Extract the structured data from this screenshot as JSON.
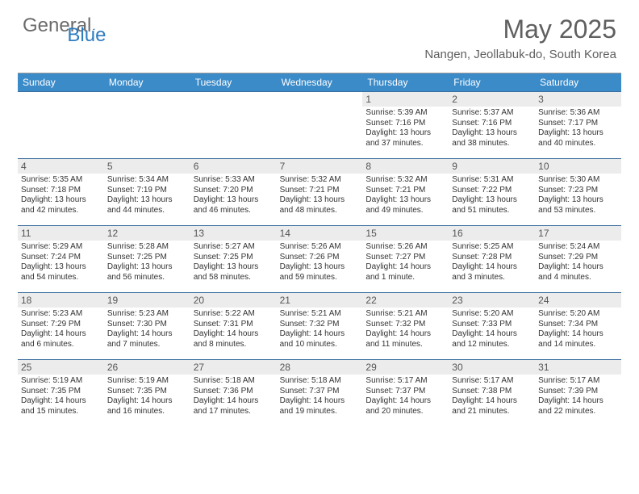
{
  "brand": {
    "part1": "General",
    "part2": "Blue"
  },
  "title": "May 2025",
  "location": "Nangen, Jeollabuk-do, South Korea",
  "colors": {
    "header_bar": "#3b8bc9",
    "week_divider": "#3b6fa0",
    "daynum_bg": "#ececec",
    "logo_gray": "#6b6b6b",
    "logo_blue": "#2e7cc0",
    "title_gray": "#5f5f5f"
  },
  "dow": [
    "Sunday",
    "Monday",
    "Tuesday",
    "Wednesday",
    "Thursday",
    "Friday",
    "Saturday"
  ],
  "weeks": [
    [
      {
        "empty": true
      },
      {
        "empty": true
      },
      {
        "empty": true
      },
      {
        "empty": true
      },
      {
        "n": "1",
        "sr": "Sunrise: 5:39 AM",
        "ss": "Sunset: 7:16 PM",
        "d1": "Daylight: 13 hours",
        "d2": "and 37 minutes."
      },
      {
        "n": "2",
        "sr": "Sunrise: 5:37 AM",
        "ss": "Sunset: 7:16 PM",
        "d1": "Daylight: 13 hours",
        "d2": "and 38 minutes."
      },
      {
        "n": "3",
        "sr": "Sunrise: 5:36 AM",
        "ss": "Sunset: 7:17 PM",
        "d1": "Daylight: 13 hours",
        "d2": "and 40 minutes."
      }
    ],
    [
      {
        "n": "4",
        "sr": "Sunrise: 5:35 AM",
        "ss": "Sunset: 7:18 PM",
        "d1": "Daylight: 13 hours",
        "d2": "and 42 minutes."
      },
      {
        "n": "5",
        "sr": "Sunrise: 5:34 AM",
        "ss": "Sunset: 7:19 PM",
        "d1": "Daylight: 13 hours",
        "d2": "and 44 minutes."
      },
      {
        "n": "6",
        "sr": "Sunrise: 5:33 AM",
        "ss": "Sunset: 7:20 PM",
        "d1": "Daylight: 13 hours",
        "d2": "and 46 minutes."
      },
      {
        "n": "7",
        "sr": "Sunrise: 5:32 AM",
        "ss": "Sunset: 7:21 PM",
        "d1": "Daylight: 13 hours",
        "d2": "and 48 minutes."
      },
      {
        "n": "8",
        "sr": "Sunrise: 5:32 AM",
        "ss": "Sunset: 7:21 PM",
        "d1": "Daylight: 13 hours",
        "d2": "and 49 minutes."
      },
      {
        "n": "9",
        "sr": "Sunrise: 5:31 AM",
        "ss": "Sunset: 7:22 PM",
        "d1": "Daylight: 13 hours",
        "d2": "and 51 minutes."
      },
      {
        "n": "10",
        "sr": "Sunrise: 5:30 AM",
        "ss": "Sunset: 7:23 PM",
        "d1": "Daylight: 13 hours",
        "d2": "and 53 minutes."
      }
    ],
    [
      {
        "n": "11",
        "sr": "Sunrise: 5:29 AM",
        "ss": "Sunset: 7:24 PM",
        "d1": "Daylight: 13 hours",
        "d2": "and 54 minutes."
      },
      {
        "n": "12",
        "sr": "Sunrise: 5:28 AM",
        "ss": "Sunset: 7:25 PM",
        "d1": "Daylight: 13 hours",
        "d2": "and 56 minutes."
      },
      {
        "n": "13",
        "sr": "Sunrise: 5:27 AM",
        "ss": "Sunset: 7:25 PM",
        "d1": "Daylight: 13 hours",
        "d2": "and 58 minutes."
      },
      {
        "n": "14",
        "sr": "Sunrise: 5:26 AM",
        "ss": "Sunset: 7:26 PM",
        "d1": "Daylight: 13 hours",
        "d2": "and 59 minutes."
      },
      {
        "n": "15",
        "sr": "Sunrise: 5:26 AM",
        "ss": "Sunset: 7:27 PM",
        "d1": "Daylight: 14 hours",
        "d2": "and 1 minute."
      },
      {
        "n": "16",
        "sr": "Sunrise: 5:25 AM",
        "ss": "Sunset: 7:28 PM",
        "d1": "Daylight: 14 hours",
        "d2": "and 3 minutes."
      },
      {
        "n": "17",
        "sr": "Sunrise: 5:24 AM",
        "ss": "Sunset: 7:29 PM",
        "d1": "Daylight: 14 hours",
        "d2": "and 4 minutes."
      }
    ],
    [
      {
        "n": "18",
        "sr": "Sunrise: 5:23 AM",
        "ss": "Sunset: 7:29 PM",
        "d1": "Daylight: 14 hours",
        "d2": "and 6 minutes."
      },
      {
        "n": "19",
        "sr": "Sunrise: 5:23 AM",
        "ss": "Sunset: 7:30 PM",
        "d1": "Daylight: 14 hours",
        "d2": "and 7 minutes."
      },
      {
        "n": "20",
        "sr": "Sunrise: 5:22 AM",
        "ss": "Sunset: 7:31 PM",
        "d1": "Daylight: 14 hours",
        "d2": "and 8 minutes."
      },
      {
        "n": "21",
        "sr": "Sunrise: 5:21 AM",
        "ss": "Sunset: 7:32 PM",
        "d1": "Daylight: 14 hours",
        "d2": "and 10 minutes."
      },
      {
        "n": "22",
        "sr": "Sunrise: 5:21 AM",
        "ss": "Sunset: 7:32 PM",
        "d1": "Daylight: 14 hours",
        "d2": "and 11 minutes."
      },
      {
        "n": "23",
        "sr": "Sunrise: 5:20 AM",
        "ss": "Sunset: 7:33 PM",
        "d1": "Daylight: 14 hours",
        "d2": "and 12 minutes."
      },
      {
        "n": "24",
        "sr": "Sunrise: 5:20 AM",
        "ss": "Sunset: 7:34 PM",
        "d1": "Daylight: 14 hours",
        "d2": "and 14 minutes."
      }
    ],
    [
      {
        "n": "25",
        "sr": "Sunrise: 5:19 AM",
        "ss": "Sunset: 7:35 PM",
        "d1": "Daylight: 14 hours",
        "d2": "and 15 minutes."
      },
      {
        "n": "26",
        "sr": "Sunrise: 5:19 AM",
        "ss": "Sunset: 7:35 PM",
        "d1": "Daylight: 14 hours",
        "d2": "and 16 minutes."
      },
      {
        "n": "27",
        "sr": "Sunrise: 5:18 AM",
        "ss": "Sunset: 7:36 PM",
        "d1": "Daylight: 14 hours",
        "d2": "and 17 minutes."
      },
      {
        "n": "28",
        "sr": "Sunrise: 5:18 AM",
        "ss": "Sunset: 7:37 PM",
        "d1": "Daylight: 14 hours",
        "d2": "and 19 minutes."
      },
      {
        "n": "29",
        "sr": "Sunrise: 5:17 AM",
        "ss": "Sunset: 7:37 PM",
        "d1": "Daylight: 14 hours",
        "d2": "and 20 minutes."
      },
      {
        "n": "30",
        "sr": "Sunrise: 5:17 AM",
        "ss": "Sunset: 7:38 PM",
        "d1": "Daylight: 14 hours",
        "d2": "and 21 minutes."
      },
      {
        "n": "31",
        "sr": "Sunrise: 5:17 AM",
        "ss": "Sunset: 7:39 PM",
        "d1": "Daylight: 14 hours",
        "d2": "and 22 minutes."
      }
    ]
  ]
}
